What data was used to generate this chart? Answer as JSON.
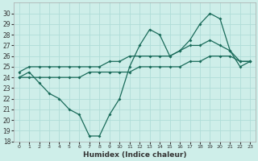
{
  "xlabel": "Humidex (Indice chaleur)",
  "ylabel": "",
  "bg_color": "#ceeee9",
  "grid_color": "#b0ddd8",
  "line_color": "#1a6b5a",
  "xlim": [
    -0.5,
    23.5
  ],
  "ylim": [
    18,
    31
  ],
  "xticks": [
    0,
    1,
    2,
    3,
    4,
    5,
    6,
    7,
    8,
    9,
    10,
    11,
    12,
    13,
    14,
    15,
    16,
    17,
    18,
    19,
    20,
    21,
    22,
    23
  ],
  "yticks": [
    18,
    19,
    20,
    21,
    22,
    23,
    24,
    25,
    26,
    27,
    28,
    29,
    30
  ],
  "line1_x": [
    0,
    1,
    2,
    3,
    4,
    5,
    6,
    7,
    8,
    9,
    10,
    11,
    12,
    13,
    14,
    15,
    16,
    17,
    18,
    19,
    20,
    21,
    22,
    23
  ],
  "line1_y": [
    24,
    24.5,
    23.5,
    22.5,
    22,
    21,
    20.5,
    18.5,
    18.5,
    20.5,
    22,
    25,
    27,
    28.5,
    28,
    26,
    26.5,
    27.5,
    29,
    30,
    29.5,
    26.5,
    25,
    25.5
  ],
  "line2_x": [
    0,
    1,
    2,
    3,
    4,
    5,
    6,
    7,
    8,
    9,
    10,
    11,
    12,
    13,
    14,
    15,
    16,
    17,
    18,
    19,
    20,
    21,
    22,
    23
  ],
  "line2_y": [
    24.5,
    25,
    25,
    25,
    25,
    25,
    25,
    25,
    25,
    25.5,
    25.5,
    26,
    26,
    26,
    26,
    26,
    26.5,
    27,
    27,
    27.5,
    27,
    26.5,
    25.5,
    25.5
  ],
  "line3_x": [
    0,
    1,
    2,
    3,
    4,
    5,
    6,
    7,
    8,
    9,
    10,
    11,
    12,
    13,
    14,
    15,
    16,
    17,
    18,
    19,
    20,
    21,
    22,
    23
  ],
  "line3_y": [
    24,
    24,
    24,
    24,
    24,
    24,
    24,
    24.5,
    24.5,
    24.5,
    24.5,
    24.5,
    25,
    25,
    25,
    25,
    25,
    25.5,
    25.5,
    26,
    26,
    26,
    25.5,
    25.5
  ]
}
